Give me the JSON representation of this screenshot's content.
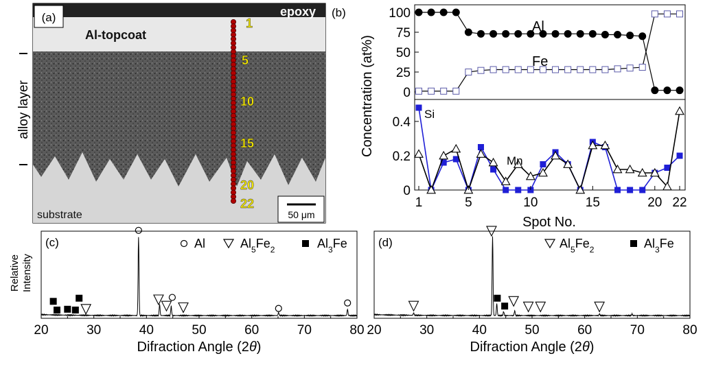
{
  "micrograph": {
    "panel_label": "(a)",
    "epoxy_label": "epoxy",
    "topcoat_label": "Al-topcoat",
    "alloy_label": "alloy layer",
    "substrate_label": "substrate",
    "scale_label": "50 μm",
    "spot_numbers": [
      "1",
      "5",
      "10",
      "15",
      "20",
      "22"
    ],
    "spot_count": 22
  },
  "chart_data": [
    {
      "id": "b_top",
      "type": "line",
      "panel_label": "(b)",
      "ylabel": "Concentration (at%)",
      "ylim": [
        0,
        100
      ],
      "yticks": [
        "100",
        "75",
        "50",
        "25",
        "0"
      ],
      "x": [
        1,
        2,
        3,
        4,
        5,
        6,
        7,
        8,
        9,
        10,
        11,
        12,
        13,
        14,
        15,
        16,
        17,
        18,
        19,
        20,
        21,
        22
      ],
      "series": [
        {
          "name": "Al",
          "marker": "filled-circle",
          "color": "#000000",
          "values": [
            100,
            100,
            100,
            100,
            75,
            73,
            73,
            73,
            73,
            73,
            73,
            73,
            73,
            73,
            73,
            72,
            72,
            71,
            70,
            2,
            2,
            2
          ]
        },
        {
          "name": "Fe",
          "marker": "open-square",
          "color": "#5a5aa8",
          "values": [
            1,
            1,
            1,
            1,
            25,
            27,
            28,
            28,
            28,
            28,
            28,
            28,
            28,
            28,
            28,
            28,
            29,
            30,
            31,
            98,
            98,
            98
          ]
        }
      ]
    },
    {
      "id": "b_bottom",
      "type": "line",
      "xlabel": "Spot No.",
      "ylim": [
        0,
        0.5
      ],
      "yticks": [
        "0.4",
        "0.2",
        "0"
      ],
      "xticks": [
        "1",
        "5",
        "10",
        "15",
        "20",
        "22"
      ],
      "x": [
        1,
        2,
        3,
        4,
        5,
        6,
        7,
        8,
        9,
        10,
        11,
        12,
        13,
        14,
        15,
        16,
        17,
        18,
        19,
        20,
        21,
        22
      ],
      "series": [
        {
          "name": "Si",
          "marker": "filled-square",
          "color": "#1f1fd6",
          "values": [
            0.48,
            0,
            0.16,
            0.18,
            0,
            0.25,
            0.12,
            0,
            0,
            0,
            0.15,
            0.22,
            0.15,
            0,
            0.28,
            0.25,
            0,
            0,
            0,
            0.1,
            0.13,
            0.2
          ]
        },
        {
          "name": "Mn",
          "marker": "open-triangle",
          "color": "#000000",
          "values": [
            0.21,
            0,
            0.2,
            0.24,
            0,
            0.21,
            0.16,
            0.05,
            0.15,
            0.08,
            0.1,
            0.2,
            0.15,
            0,
            0.26,
            0.26,
            0.12,
            0.12,
            0.1,
            0.1,
            0.02,
            0.46
          ]
        }
      ]
    },
    {
      "id": "c",
      "type": "line",
      "panel_label": "(c)",
      "xlabel": "Difraction Angle (2θ)",
      "ylabel_line1": "Relative",
      "ylabel_line2": "Intensity",
      "xlim": [
        20,
        80
      ],
      "xticks": [
        "20",
        "30",
        "40",
        "50",
        "60",
        "70",
        "80"
      ],
      "legend": [
        "Al",
        "Al5Fe2",
        "Al3Fe"
      ],
      "peaks": [
        {
          "angle": 38.5,
          "height": 1.0
        },
        {
          "angle": 42.5,
          "height": 0.14
        },
        {
          "angle": 44.7,
          "height": 0.12
        },
        {
          "angle": 65.1,
          "height": 0.04
        },
        {
          "angle": 78.2,
          "height": 0.08
        }
      ],
      "markers": [
        {
          "symbol": "square",
          "angle": 22.3,
          "level": 0.18
        },
        {
          "symbol": "square",
          "angle": 23.0,
          "level": 0.07
        },
        {
          "symbol": "square",
          "angle": 25.0,
          "level": 0.08
        },
        {
          "symbol": "square",
          "angle": 26.5,
          "level": 0.07
        },
        {
          "symbol": "square",
          "angle": 27.2,
          "level": 0.22
        },
        {
          "symbol": "triangle",
          "angle": 28.5,
          "level": 0.08
        },
        {
          "symbol": "circle",
          "angle": 38.5,
          "level": 1.08
        },
        {
          "symbol": "triangle",
          "angle": 42.3,
          "level": 0.2
        },
        {
          "symbol": "triangle",
          "angle": 43.8,
          "level": 0.12
        },
        {
          "symbol": "circle",
          "angle": 44.9,
          "level": 0.23
        },
        {
          "symbol": "triangle",
          "angle": 47.0,
          "level": 0.1
        },
        {
          "symbol": "circle",
          "angle": 65.1,
          "level": 0.09
        },
        {
          "symbol": "circle",
          "angle": 78.2,
          "level": 0.16
        }
      ]
    },
    {
      "id": "d",
      "type": "line",
      "panel_label": "(d)",
      "xlabel": "Difraction Angle (2θ)",
      "xlim": [
        20,
        80
      ],
      "xticks": [
        "20",
        "30",
        "40",
        "50",
        "60",
        "70",
        "80"
      ],
      "legend": [
        "Al5Fe2",
        "Al3Fe"
      ],
      "peaks": [
        {
          "angle": 27.5,
          "height": 0.03
        },
        {
          "angle": 42.5,
          "height": 1.0
        },
        {
          "angle": 43.3,
          "height": 0.15
        },
        {
          "angle": 44.6,
          "height": 0.05
        },
        {
          "angle": 46.7,
          "height": 0.06
        },
        {
          "angle": 62.8,
          "height": 0.02
        },
        {
          "angle": 69.0,
          "height": 0.02
        }
      ],
      "markers": [
        {
          "symbol": "triangle",
          "angle": 27.5,
          "level": 0.12
        },
        {
          "symbol": "triangle",
          "angle": 42.3,
          "level": 1.07
        },
        {
          "symbol": "square",
          "angle": 43.4,
          "level": 0.22
        },
        {
          "symbol": "square",
          "angle": 44.8,
          "level": 0.12
        },
        {
          "symbol": "triangle",
          "angle": 46.5,
          "level": 0.18
        },
        {
          "symbol": "triangle",
          "angle": 49.3,
          "level": 0.11
        },
        {
          "symbol": "triangle",
          "angle": 51.6,
          "level": 0.11
        },
        {
          "symbol": "triangle",
          "angle": 62.8,
          "level": 0.11
        }
      ]
    }
  ]
}
